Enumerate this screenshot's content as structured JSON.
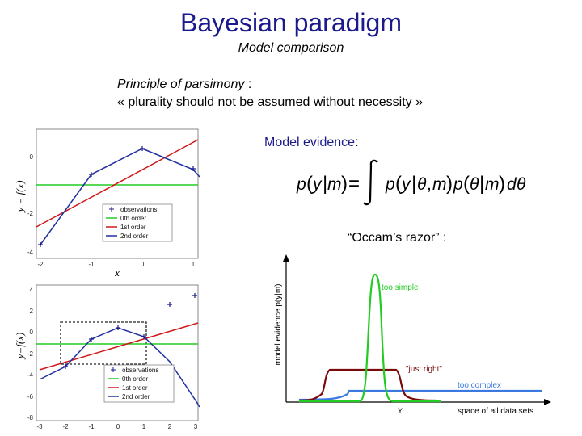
{
  "slide": {
    "title": "Bayesian paradigm",
    "subtitle": "Model comparison",
    "principle_term": "Principle of parsimony",
    "principle_suffix": " :",
    "principle_quote": "« plurality should not be assumed without necessity »",
    "evidence_label": "Model evidence",
    "evidence_colon": ":",
    "evidence_formula": "p(y|m) = ∫ p(y|θ,m) p(θ|m) dθ",
    "occam_label": "“Occam’s razor” :"
  },
  "plot_top": {
    "ylabel": "y = f(x)",
    "xlabel": "x",
    "xticks": [
      "-2",
      "-1",
      "0",
      "1"
    ],
    "yticks": [
      "0",
      "-2",
      "-4"
    ],
    "legend": [
      "observations",
      "0th order",
      "1st order",
      "2nd order"
    ]
  },
  "plot_bottom": {
    "ylabel": "y=f(x)",
    "xticks": [
      "-3",
      "-2",
      "-1",
      "0",
      "1",
      "2",
      "3"
    ],
    "yticks": [
      "4",
      "2",
      "0",
      "-2",
      "-4",
      "-6",
      "-8"
    ],
    "legend": [
      "observations",
      "0th order",
      "1st order",
      "2nd order"
    ]
  },
  "occam_plot": {
    "ylabel": "model evidence p(y|m)",
    "xlabel": "space of all data sets",
    "y_marker": "Y",
    "labels": [
      "too simple",
      "\"just right\"",
      "too complex"
    ]
  },
  "colors": {
    "title": "#1a1a8c",
    "observations": "#1a1a8c",
    "zeroth_order": "#22cc22",
    "first_order": "#d01818",
    "second_order": "#2030a0",
    "too_simple": "#22cc22",
    "just_right": "#7a0a0a",
    "too_complex": "#3a7ae0"
  }
}
